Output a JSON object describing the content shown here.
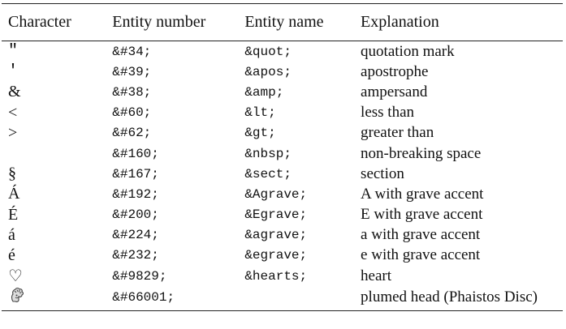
{
  "headers": {
    "character": "Character",
    "entity_number": "Entity number",
    "entity_name": "Entity name",
    "explanation": "Explanation"
  },
  "rows": [
    {
      "character": "\"",
      "number": "&#34;",
      "name": "&quot;",
      "explanation": "quotation mark"
    },
    {
      "character": "'",
      "number": "&#39;",
      "name": "&apos;",
      "explanation": "apostrophe"
    },
    {
      "character": "&",
      "number": "&#38;",
      "name": "&amp;",
      "explanation": "ampersand"
    },
    {
      "character": "<",
      "number": "&#60;",
      "name": "&lt;",
      "explanation": "less than"
    },
    {
      "character": ">",
      "number": "&#62;",
      "name": "&gt;",
      "explanation": "greater than"
    },
    {
      "character": "",
      "number": "&#160;",
      "name": "&nbsp;",
      "explanation": "non-breaking space"
    },
    {
      "character": "§",
      "number": "&#167;",
      "name": "&sect;",
      "explanation": "section"
    },
    {
      "character": "Á",
      "number": "&#192;",
      "name": "&Agrave;",
      "explanation": "A with grave accent"
    },
    {
      "character": "É",
      "number": "&#200;",
      "name": "&Egrave;",
      "explanation": "E with grave accent"
    },
    {
      "character": "á",
      "number": "&#224;",
      "name": "&agrave;",
      "explanation": "a with grave accent"
    },
    {
      "character": "é",
      "number": "&#232;",
      "name": "&egrave;",
      "explanation": "e with grave accent"
    },
    {
      "character": "♡",
      "number": "&#9829;",
      "name": "&hearts;",
      "explanation": "heart"
    },
    {
      "character_icon": "plumed-head-glyph-icon",
      "number": "&#66001;",
      "name": "",
      "explanation": "plumed head (Phaistos Disc)"
    }
  ]
}
